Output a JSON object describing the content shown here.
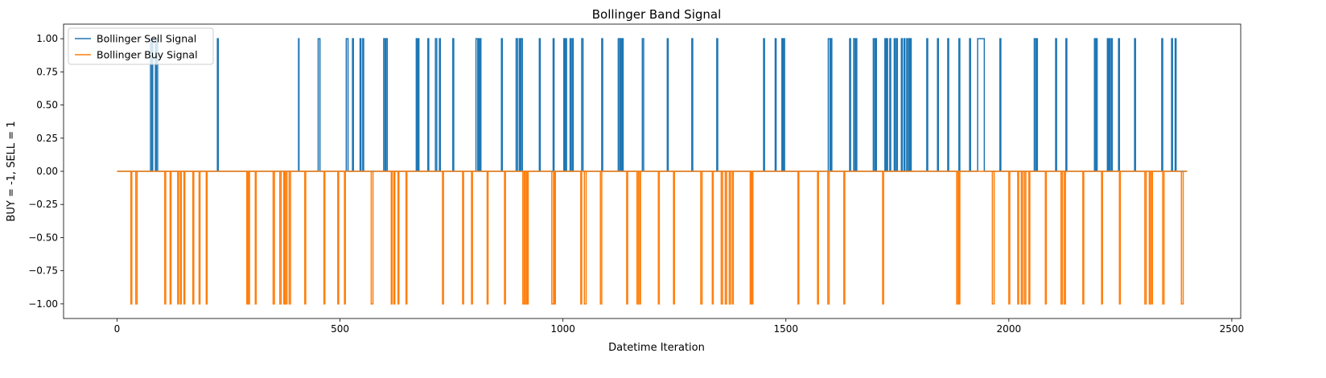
{
  "chart_data": {
    "type": "line",
    "title": "Bollinger Band Signal",
    "xlabel": "Datetime Iteration",
    "ylabel": "BUY = -1, SELL = 1",
    "xlim": [
      -120,
      2520
    ],
    "ylim": [
      -1.11,
      1.11
    ],
    "x_range": [
      0,
      2400
    ],
    "xticks": [
      0,
      500,
      1000,
      1500,
      2000,
      2500
    ],
    "xtick_labels": [
      "0",
      "500",
      "1000",
      "1500",
      "2000",
      "2500"
    ],
    "yticks": [
      1.0,
      0.75,
      0.5,
      0.25,
      0.0,
      -0.25,
      -0.5,
      -0.75,
      -1.0
    ],
    "ytick_labels": [
      "1.00",
      "0.75",
      "0.50",
      "0.25",
      "0.00",
      "−0.25",
      "−0.50",
      "−0.75",
      "−1.00"
    ],
    "legend": {
      "placement": "upper-left",
      "entries": [
        "Bollinger Sell Signal",
        "Bollinger Buy Signal"
      ]
    },
    "series": [
      {
        "name": "Bollinger Sell Signal",
        "color": "#1f77b4",
        "value": 1,
        "spikes": [
          [
            75,
            78
          ],
          [
            80,
            86
          ],
          [
            88,
            91
          ],
          [
            225,
            227
          ],
          [
            407,
            408
          ],
          [
            451,
            455
          ],
          [
            514,
            518
          ],
          [
            528,
            530
          ],
          [
            545,
            547
          ],
          [
            551,
            553
          ],
          [
            598,
            601
          ],
          [
            603,
            606
          ],
          [
            671,
            673
          ],
          [
            675,
            677
          ],
          [
            697,
            699
          ],
          [
            714,
            717
          ],
          [
            723,
            725
          ],
          [
            753,
            755
          ],
          [
            805,
            809
          ],
          [
            811,
            813
          ],
          [
            814,
            816
          ],
          [
            862,
            864
          ],
          [
            895,
            898
          ],
          [
            902,
            904
          ],
          [
            906,
            909
          ],
          [
            947,
            949
          ],
          [
            978,
            980
          ],
          [
            1002,
            1004
          ],
          [
            1006,
            1008
          ],
          [
            1016,
            1018
          ],
          [
            1021,
            1023
          ],
          [
            1042,
            1045
          ],
          [
            1087,
            1089
          ],
          [
            1124,
            1127
          ],
          [
            1129,
            1131
          ],
          [
            1133,
            1135
          ],
          [
            1178,
            1181
          ],
          [
            1234,
            1236
          ],
          [
            1289,
            1291
          ],
          [
            1345,
            1347
          ],
          [
            1450,
            1452
          ],
          [
            1476,
            1478
          ],
          [
            1491,
            1493
          ],
          [
            1495,
            1497
          ],
          [
            1595,
            1599
          ],
          [
            1601,
            1603
          ],
          [
            1643,
            1645
          ],
          [
            1652,
            1655
          ],
          [
            1657,
            1659
          ],
          [
            1696,
            1699
          ],
          [
            1701,
            1703
          ],
          [
            1722,
            1724
          ],
          [
            1726,
            1728
          ],
          [
            1733,
            1735
          ],
          [
            1743,
            1745
          ],
          [
            1748,
            1750
          ],
          [
            1759,
            1761
          ],
          [
            1765,
            1767
          ],
          [
            1771,
            1773
          ],
          [
            1776,
            1778
          ],
          [
            1779,
            1781
          ],
          [
            1816,
            1818
          ],
          [
            1840,
            1842
          ],
          [
            1863,
            1865
          ],
          [
            1888,
            1890
          ],
          [
            1912,
            1914
          ],
          [
            1930,
            1945
          ],
          [
            1980,
            1982
          ],
          [
            2057,
            2060
          ],
          [
            2062,
            2064
          ],
          [
            2105,
            2107
          ],
          [
            2128,
            2130
          ],
          [
            2192,
            2194
          ],
          [
            2196,
            2198
          ],
          [
            2221,
            2223
          ],
          [
            2225,
            2227
          ],
          [
            2230,
            2232
          ],
          [
            2246,
            2248
          ],
          [
            2282,
            2284
          ],
          [
            2343,
            2345
          ],
          [
            2365,
            2367
          ],
          [
            2373,
            2375
          ]
        ]
      },
      {
        "name": "Bollinger Buy Signal",
        "color": "#ff7f0e",
        "value": -1,
        "spikes": [
          [
            31,
            33
          ],
          [
            42,
            45
          ],
          [
            107,
            109
          ],
          [
            119,
            121
          ],
          [
            136,
            138
          ],
          [
            142,
            144
          ],
          [
            150,
            152
          ],
          [
            170,
            172
          ],
          [
            184,
            186
          ],
          [
            200,
            202
          ],
          [
            291,
            293
          ],
          [
            295,
            297
          ],
          [
            310,
            312
          ],
          [
            350,
            353
          ],
          [
            365,
            368
          ],
          [
            374,
            376
          ],
          [
            378,
            381
          ],
          [
            386,
            389
          ],
          [
            421,
            423
          ],
          [
            464,
            466
          ],
          [
            495,
            497
          ],
          [
            510,
            512
          ],
          [
            570,
            574
          ],
          [
            615,
            617
          ],
          [
            621,
            623
          ],
          [
            630,
            632
          ],
          [
            648,
            650
          ],
          [
            730,
            732
          ],
          [
            775,
            777
          ],
          [
            795,
            797
          ],
          [
            830,
            832
          ],
          [
            869,
            871
          ],
          [
            910,
            913
          ],
          [
            915,
            918
          ],
          [
            920,
            922
          ],
          [
            975,
            979
          ],
          [
            981,
            983
          ],
          [
            1040,
            1042
          ],
          [
            1048,
            1052
          ],
          [
            1084,
            1087
          ],
          [
            1143,
            1145
          ],
          [
            1166,
            1169
          ],
          [
            1172,
            1174
          ],
          [
            1214,
            1216
          ],
          [
            1248,
            1250
          ],
          [
            1309,
            1312
          ],
          [
            1335,
            1337
          ],
          [
            1355,
            1358
          ],
          [
            1364,
            1367
          ],
          [
            1373,
            1376
          ],
          [
            1380,
            1382
          ],
          [
            1420,
            1422
          ],
          [
            1424,
            1426
          ],
          [
            1527,
            1529
          ],
          [
            1571,
            1573
          ],
          [
            1594,
            1597
          ],
          [
            1630,
            1632
          ],
          [
            1717,
            1719
          ],
          [
            1883,
            1886
          ],
          [
            1888,
            1890
          ],
          [
            1963,
            1967
          ],
          [
            2000,
            2002
          ],
          [
            2020,
            2022
          ],
          [
            2028,
            2031
          ],
          [
            2035,
            2038
          ],
          [
            2045,
            2047
          ],
          [
            2082,
            2084
          ],
          [
            2117,
            2120
          ],
          [
            2124,
            2127
          ],
          [
            2166,
            2168
          ],
          [
            2208,
            2210
          ],
          [
            2248,
            2250
          ],
          [
            2305,
            2308
          ],
          [
            2315,
            2317
          ],
          [
            2320,
            2322
          ],
          [
            2345,
            2348
          ],
          [
            2387,
            2391
          ]
        ]
      }
    ]
  }
}
